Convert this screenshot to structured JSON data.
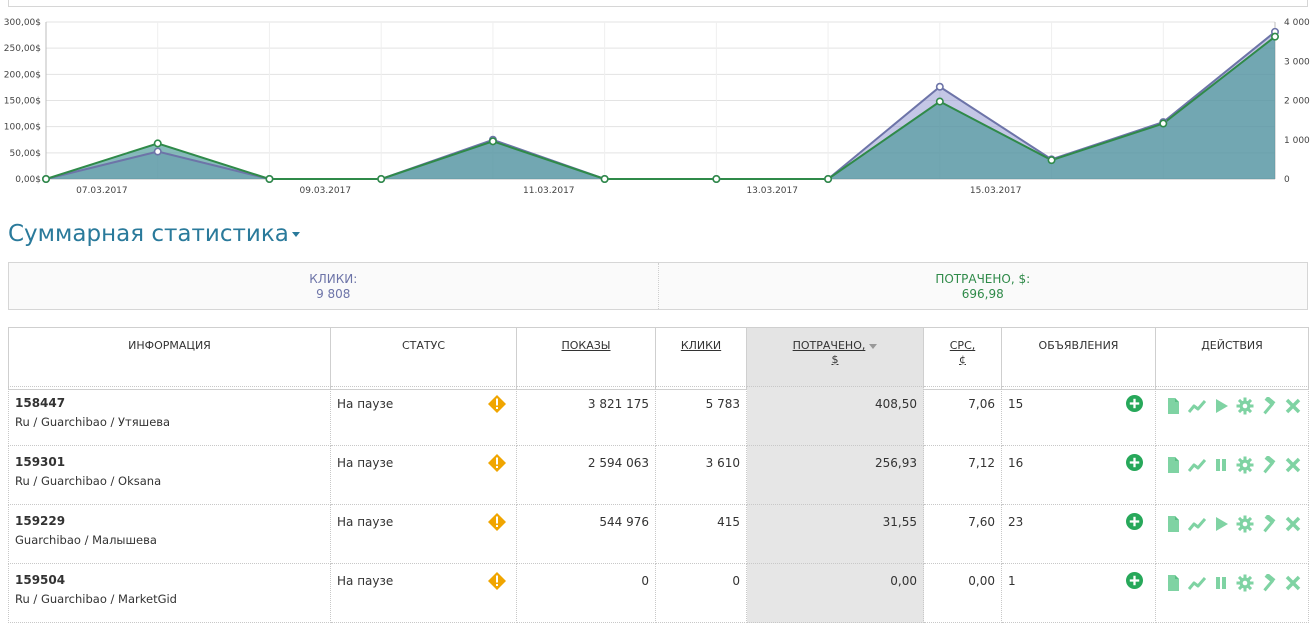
{
  "chart_data": {
    "type": "area",
    "x_tick_labels": [
      "07.03.2017",
      "09.03.2017",
      "11.03.2017",
      "13.03.2017",
      "15.03.2017"
    ],
    "y_left_ticks": [
      "0,00$",
      "50,00$",
      "100,00$",
      "150,00$",
      "200,00$",
      "250,00$",
      "300,00$"
    ],
    "y_left_range": [
      0,
      300
    ],
    "y_right_ticks": [
      "0",
      "1 000",
      "2 000",
      "3 000",
      "4 000"
    ],
    "y_right_range": [
      0,
      4000
    ],
    "grid": true,
    "series": [
      {
        "axis": "right",
        "color": "#6d74a8",
        "values": [
          0,
          700,
          0,
          0,
          1000,
          0,
          0,
          0,
          2350,
          500,
          1450,
          3750
        ]
      },
      {
        "axis": "left",
        "color": "#2f8a49",
        "values": [
          0,
          68,
          0,
          0,
          72,
          0,
          0,
          0,
          148,
          36,
          106,
          272
        ]
      }
    ]
  },
  "summary": {
    "title": "Суммарная статистика",
    "clicks_label": "КЛИКИ:",
    "clicks_value": "9 808",
    "spent_label": "ПОТРАЧЕНО, $:",
    "spent_value": "696,98"
  },
  "table": {
    "headers": {
      "info": "ИНФОРМАЦИЯ",
      "status": "СТАТУС",
      "impressions": "ПОКАЗЫ",
      "clicks": "КЛИКИ",
      "spent_l1": "ПОТРАЧЕНО,",
      "spent_l2": "$",
      "cpc_l1": "CPC,",
      "cpc_l2": "¢",
      "ads": "ОБЪЯВЛЕНИЯ",
      "actions": "ДЕЙСТВИЯ"
    },
    "rows": [
      {
        "id": "158447",
        "path": "Ru / Guarchibao / Утяшева",
        "status": "На паузе",
        "impressions": "3 821 175",
        "clicks": "5 783",
        "spent": "408,50",
        "cpc": "7,06",
        "ads": "15",
        "toggle": "play"
      },
      {
        "id": "159301",
        "path": "Ru / Guarchibao / Oksana",
        "status": "На паузе",
        "impressions": "2 594 063",
        "clicks": "3 610",
        "spent": "256,93",
        "cpc": "7,12",
        "ads": "16",
        "toggle": "pause"
      },
      {
        "id": "159229",
        "path": "Guarchibao / Малышева",
        "status": "На паузе",
        "impressions": "544 976",
        "clicks": "415",
        "spent": "31,55",
        "cpc": "7,60",
        "ads": "23",
        "toggle": "play"
      },
      {
        "id": "159504",
        "path": "Ru / Guarchibao / MarketGid",
        "status": "На паузе",
        "impressions": "0",
        "clicks": "0",
        "spent": "0,00",
        "cpc": "0,00",
        "ads": "1",
        "toggle": "pause"
      }
    ]
  },
  "colors": {
    "accent": "#2a7a9b",
    "icon_green": "#7fd3a3",
    "add_green": "#27a85a",
    "warn": "#f0a500"
  }
}
